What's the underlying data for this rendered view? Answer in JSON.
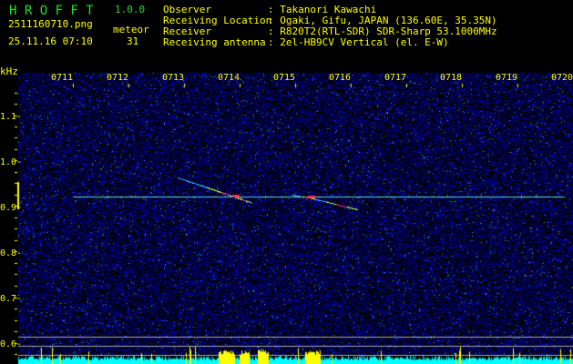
{
  "header": {
    "app_name": "H R O F F T",
    "version": "1.0.0",
    "filename": "2511160710.png",
    "datetime": "25.11.16 07:10",
    "meteor_label": "meteor",
    "meteor_count": "31",
    "info": [
      {
        "label": "Observer",
        "value": ": Takanori Kawachi"
      },
      {
        "label": "Receiving Location",
        "value": ": Ogaki, Gifu, JAPAN (136.60E, 35.35N)"
      },
      {
        "label": "Receiver",
        "value": ": R820T2(RTL-SDR) SDR-Sharp 53.1000MHz"
      },
      {
        "label": "Receiving antenna",
        "value": ": 2el-HB9CV Vertical (el. E-W)"
      }
    ]
  },
  "spectrogram": {
    "y_unit": "kHz",
    "y_ticks": [
      "1.1",
      "1.0",
      "0.9",
      "0.8",
      "0.7",
      "0.6"
    ],
    "x_ticks": [
      "0711",
      "0712",
      "0713",
      "0714",
      "0715",
      "0716",
      "0717",
      "0718",
      "0719",
      "0720"
    ],
    "carrier_khz": 0.925,
    "colors": {
      "text": "#ffff00",
      "title": "#22e022",
      "noise": "#1a2ad0",
      "activity": "#00ffff"
    }
  }
}
